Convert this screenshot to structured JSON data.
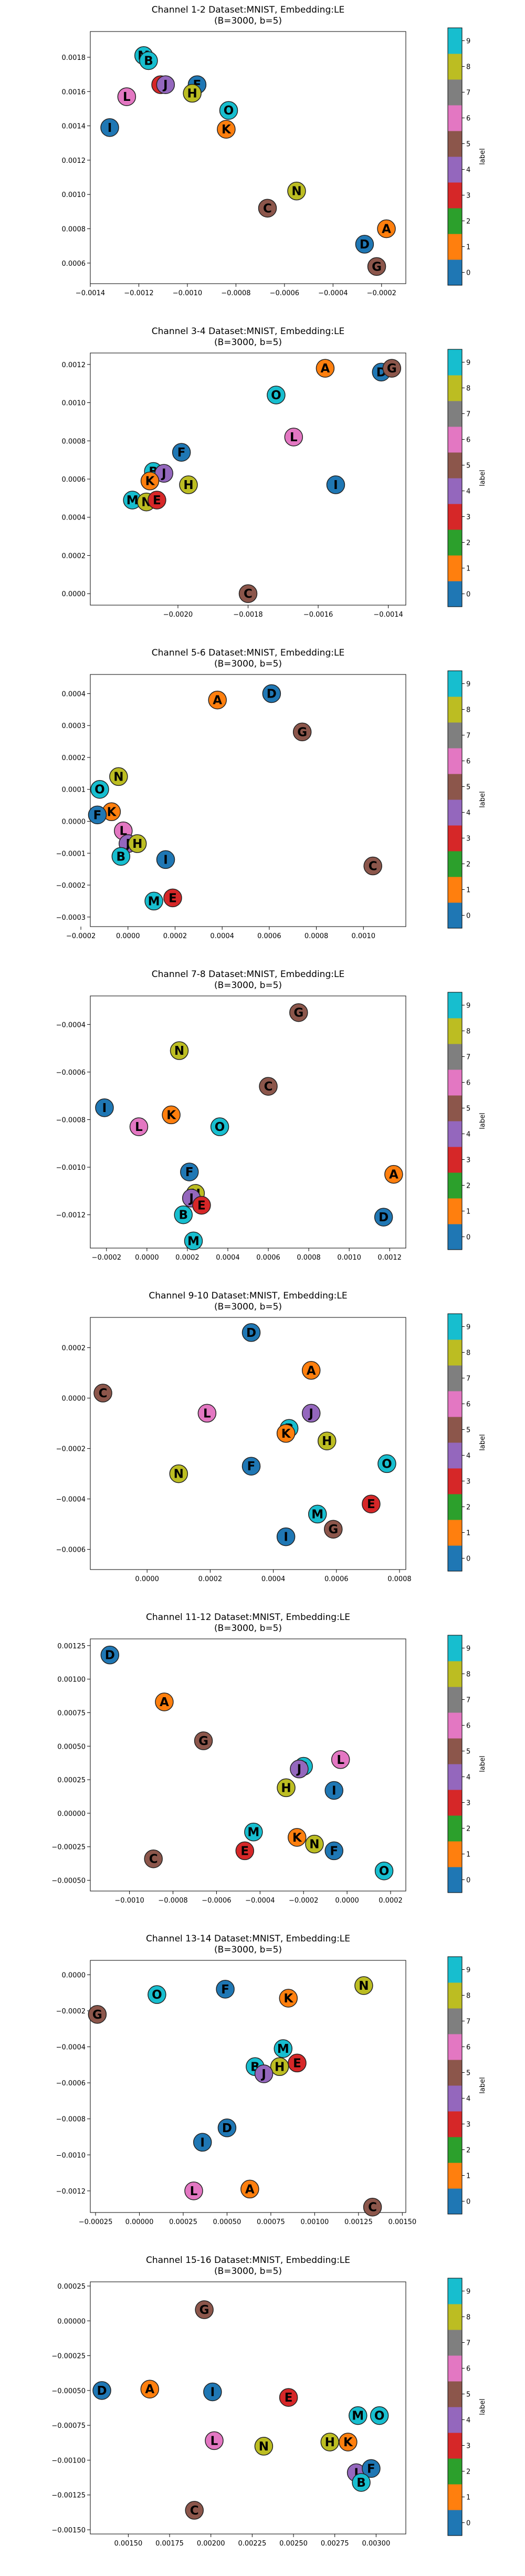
{
  "figure": {
    "colorbar": {
      "label": "label",
      "ticks": [
        "0",
        "1",
        "2",
        "3",
        "4",
        "5",
        "6",
        "7",
        "8",
        "9"
      ],
      "colors": [
        "#1f77b4",
        "#ff7f0e",
        "#2ca02c",
        "#d62728",
        "#9467bd",
        "#8c564b",
        "#e377c2",
        "#7f7f7f",
        "#bcbd22",
        "#17becf"
      ]
    },
    "letter_label": {
      "A": 1,
      "B": 9,
      "D": 0,
      "E": 3,
      "F": 0,
      "G": 5,
      "H": 8,
      "I": 0,
      "J": 4,
      "K": 1,
      "L": 6,
      "M": 9,
      "N": 8,
      "O": 9,
      "C": 5
    }
  },
  "chart_data": [
    {
      "type": "scatter",
      "title": "Channel 1-2 Dataset:MNIST, Embedding:LE",
      "subtitle": "(B=3000, b=5)",
      "xlim": [
        -0.0014,
        -0.0001
      ],
      "ylim": [
        0.00048,
        0.00195
      ],
      "xticks": [
        -0.0014,
        -0.0012,
        -0.001,
        -0.0008,
        -0.0006,
        -0.0004,
        -0.0002
      ],
      "xticklabels": [
        "−0.0014",
        "−0.0012",
        "−0.0010",
        "−0.0008",
        "−0.0006",
        "−0.0004",
        "−0.0002"
      ],
      "yticks": [
        0.0006,
        0.0008,
        0.001,
        0.0012,
        0.0014,
        0.0016,
        0.0018
      ],
      "yticklabels": [
        "0.0006",
        "0.0008",
        "0.0010",
        "0.0012",
        "0.0014",
        "0.0016",
        "0.0018"
      ],
      "points": [
        {
          "letter": "M",
          "x": -0.00118,
          "y": 0.00181
        },
        {
          "letter": "B",
          "x": -0.00116,
          "y": 0.00178
        },
        {
          "letter": "L",
          "x": -0.00125,
          "y": 0.00157
        },
        {
          "letter": "I",
          "x": -0.00132,
          "y": 0.00139
        },
        {
          "letter": "E",
          "x": -0.00111,
          "y": 0.00164
        },
        {
          "letter": "J",
          "x": -0.00109,
          "y": 0.00164
        },
        {
          "letter": "F",
          "x": -0.00096,
          "y": 0.00164
        },
        {
          "letter": "H",
          "x": -0.00098,
          "y": 0.00159
        },
        {
          "letter": "O",
          "x": -0.00083,
          "y": 0.00149
        },
        {
          "letter": "K",
          "x": -0.00084,
          "y": 0.00138
        },
        {
          "letter": "N",
          "x": -0.00055,
          "y": 0.00102
        },
        {
          "letter": "C",
          "x": -0.00067,
          "y": 0.00092
        },
        {
          "letter": "A",
          "x": -0.00018,
          "y": 0.0008
        },
        {
          "letter": "D",
          "x": -0.00027,
          "y": 0.00071
        },
        {
          "letter": "G",
          "x": -0.00022,
          "y": 0.00058
        }
      ]
    },
    {
      "type": "scatter",
      "title": "Channel 3-4 Dataset:MNIST, Embedding:LE",
      "subtitle": "(B=3000, b=5)",
      "xlim": [
        -0.00225,
        -0.00135
      ],
      "ylim": [
        -6e-05,
        0.00126
      ],
      "xticks": [
        -0.002,
        -0.0018,
        -0.0016,
        -0.0014
      ],
      "xticklabels": [
        "−0.0020",
        "−0.0018",
        "−0.0016",
        "−0.0014"
      ],
      "yticks": [
        0,
        0.0002,
        0.0004,
        0.0006,
        0.0008,
        0.001,
        0.0012
      ],
      "yticklabels": [
        "0.0000",
        "0.0002",
        "0.0004",
        "0.0006",
        "0.0008",
        "0.0010",
        "0.0012"
      ],
      "points": [
        {
          "letter": "A",
          "x": -0.00158,
          "y": 0.00118
        },
        {
          "letter": "D",
          "x": -0.00142,
          "y": 0.00116
        },
        {
          "letter": "G",
          "x": -0.00139,
          "y": 0.00118
        },
        {
          "letter": "O",
          "x": -0.00172,
          "y": 0.00104
        },
        {
          "letter": "L",
          "x": -0.00167,
          "y": 0.00082
        },
        {
          "letter": "F",
          "x": -0.00199,
          "y": 0.00074
        },
        {
          "letter": "B",
          "x": -0.00207,
          "y": 0.00064
        },
        {
          "letter": "J",
          "x": -0.00204,
          "y": 0.00063
        },
        {
          "letter": "K",
          "x": -0.00208,
          "y": 0.00059
        },
        {
          "letter": "H",
          "x": -0.00197,
          "y": 0.00057
        },
        {
          "letter": "I",
          "x": -0.00155,
          "y": 0.00057
        },
        {
          "letter": "M",
          "x": -0.00213,
          "y": 0.00049
        },
        {
          "letter": "N",
          "x": -0.00209,
          "y": 0.00048
        },
        {
          "letter": "E",
          "x": -0.00206,
          "y": 0.00049
        },
        {
          "letter": "C",
          "x": -0.0018,
          "y": 0.0
        }
      ]
    },
    {
      "type": "scatter",
      "title": "Channel 5-6 Dataset:MNIST, Embedding:LE",
      "subtitle": "(B=3000, b=5)",
      "xlim": [
        -0.00016,
        0.00118
      ],
      "ylim": [
        -0.00033,
        0.00046
      ],
      "xticks": [
        -0.0002,
        0,
        0.0002,
        0.0004,
        0.0006,
        0.0008,
        0.001
      ],
      "xticklabels": [
        "−0.0002",
        "0.0000",
        "0.0002",
        "0.0004",
        "0.0006",
        "0.0008",
        "0.0010"
      ],
      "yticks": [
        -0.0003,
        -0.0002,
        -0.0001,
        0,
        0.0001,
        0.0002,
        0.0003,
        0.0004
      ],
      "yticklabels": [
        "−0.0003",
        "−0.0002",
        "−0.0001",
        "0.0000",
        "0.0001",
        "0.0002",
        "0.0003",
        "0.0004"
      ],
      "points": [
        {
          "letter": "D",
          "x": 0.00061,
          "y": 0.0004
        },
        {
          "letter": "A",
          "x": 0.00038,
          "y": 0.00038
        },
        {
          "letter": "G",
          "x": 0.00074,
          "y": 0.00028
        },
        {
          "letter": "N",
          "x": -4e-05,
          "y": 0.00014
        },
        {
          "letter": "O",
          "x": -0.00012,
          "y": 0.0001
        },
        {
          "letter": "K",
          "x": -7e-05,
          "y": 3e-05
        },
        {
          "letter": "F",
          "x": -0.00013,
          "y": 2e-05
        },
        {
          "letter": "L",
          "x": -2e-05,
          "y": -3e-05
        },
        {
          "letter": "J",
          "x": 0.0,
          "y": -7e-05
        },
        {
          "letter": "H",
          "x": 4e-05,
          "y": -7e-05
        },
        {
          "letter": "B",
          "x": -3e-05,
          "y": -0.00011
        },
        {
          "letter": "I",
          "x": 0.00016,
          "y": -0.00012
        },
        {
          "letter": "M",
          "x": 0.00011,
          "y": -0.00025
        },
        {
          "letter": "E",
          "x": 0.00019,
          "y": -0.00024
        },
        {
          "letter": "C",
          "x": 0.00104,
          "y": -0.00014
        }
      ]
    },
    {
      "type": "scatter",
      "title": "Channel 7-8 Dataset:MNIST, Embedding:LE",
      "subtitle": "(B=3000, b=5)",
      "xlim": [
        -0.00028,
        0.00128
      ],
      "ylim": [
        -0.00134,
        -0.00028
      ],
      "xticks": [
        -0.0002,
        0,
        0.0002,
        0.0004,
        0.0006,
        0.0008,
        0.001,
        0.0012
      ],
      "xticklabels": [
        "−0.0002",
        "0.0000",
        "0.0002",
        "0.0004",
        "0.0006",
        "0.0008",
        "0.0010",
        "0.0012"
      ],
      "yticks": [
        -0.0012,
        -0.001,
        -0.0008,
        -0.0006,
        -0.0004
      ],
      "yticklabels": [
        "−0.0012",
        "−0.0010",
        "−0.0008",
        "−0.0006",
        "−0.0004"
      ],
      "points": [
        {
          "letter": "G",
          "x": 0.00075,
          "y": -0.00035
        },
        {
          "letter": "N",
          "x": 0.00016,
          "y": -0.00051
        },
        {
          "letter": "C",
          "x": 0.0006,
          "y": -0.00066
        },
        {
          "letter": "I",
          "x": -0.00021,
          "y": -0.00075
        },
        {
          "letter": "K",
          "x": 0.00012,
          "y": -0.00078
        },
        {
          "letter": "L",
          "x": -4e-05,
          "y": -0.00083
        },
        {
          "letter": "O",
          "x": 0.00036,
          "y": -0.00083
        },
        {
          "letter": "A",
          "x": 0.00122,
          "y": -0.00103
        },
        {
          "letter": "F",
          "x": 0.00021,
          "y": -0.00102
        },
        {
          "letter": "H",
          "x": 0.00024,
          "y": -0.00111
        },
        {
          "letter": "J",
          "x": 0.00022,
          "y": -0.00113
        },
        {
          "letter": "E",
          "x": 0.00027,
          "y": -0.00116
        },
        {
          "letter": "B",
          "x": 0.00018,
          "y": -0.0012
        },
        {
          "letter": "D",
          "x": 0.00117,
          "y": -0.00121
        },
        {
          "letter": "M",
          "x": 0.00023,
          "y": -0.00131
        }
      ]
    },
    {
      "type": "scatter",
      "title": "Channel 9-10 Dataset:MNIST, Embedding:LE",
      "subtitle": "(B=3000, b=5)",
      "xlim": [
        -0.00018,
        0.00082
      ],
      "ylim": [
        -0.00068,
        0.00032
      ],
      "xticks": [
        0,
        0.0002,
        0.0004,
        0.0006,
        0.0008
      ],
      "xticklabels": [
        "0.0000",
        "0.0002",
        "0.0004",
        "0.0006",
        "0.0008"
      ],
      "yticks": [
        -0.0006,
        -0.0004,
        -0.0002,
        0,
        0.0002
      ],
      "yticklabels": [
        "−0.0006",
        "−0.0004",
        "−0.0002",
        "0.0000",
        "0.0002"
      ],
      "points": [
        {
          "letter": "D",
          "x": 0.00033,
          "y": 0.00026
        },
        {
          "letter": "A",
          "x": 0.00052,
          "y": 0.00011
        },
        {
          "letter": "C",
          "x": -0.00014,
          "y": 2e-05
        },
        {
          "letter": "L",
          "x": 0.00019,
          "y": -6e-05
        },
        {
          "letter": "J",
          "x": 0.00052,
          "y": -6e-05
        },
        {
          "letter": "B",
          "x": 0.00045,
          "y": -0.00012
        },
        {
          "letter": "K",
          "x": 0.00044,
          "y": -0.00014
        },
        {
          "letter": "H",
          "x": 0.00057,
          "y": -0.00017
        },
        {
          "letter": "N",
          "x": 0.0001,
          "y": -0.0003
        },
        {
          "letter": "F",
          "x": 0.00033,
          "y": -0.00027
        },
        {
          "letter": "O",
          "x": 0.00076,
          "y": -0.00026
        },
        {
          "letter": "E",
          "x": 0.00071,
          "y": -0.00042
        },
        {
          "letter": "M",
          "x": 0.00054,
          "y": -0.00046
        },
        {
          "letter": "G",
          "x": 0.00059,
          "y": -0.00052
        },
        {
          "letter": "I",
          "x": 0.00044,
          "y": -0.00055
        }
      ]
    },
    {
      "type": "scatter",
      "title": "Channel 11-12 Dataset:MNIST, Embedding:LE",
      "subtitle": "(B=3000, b=5)",
      "xlim": [
        -0.00118,
        0.00027
      ],
      "ylim": [
        -0.00058,
        0.0013
      ],
      "xticks": [
        -0.001,
        -0.0008,
        -0.0006,
        -0.0004,
        -0.0002,
        0,
        0.0002
      ],
      "xticklabels": [
        "−0.0010",
        "−0.0008",
        "−0.0006",
        "−0.0004",
        "−0.0002",
        "0.0000",
        "0.0002"
      ],
      "yticks": [
        -0.0005,
        -0.00025,
        0,
        0.00025,
        0.0005,
        0.00075,
        0.001,
        0.00125
      ],
      "yticklabels": [
        "−0.00050",
        "−0.00025",
        "0.00000",
        "0.00025",
        "0.00050",
        "0.00075",
        "0.00100",
        "0.00125"
      ],
      "points": [
        {
          "letter": "D",
          "x": -0.00109,
          "y": 0.00118
        },
        {
          "letter": "A",
          "x": -0.00084,
          "y": 0.00083
        },
        {
          "letter": "G",
          "x": -0.00066,
          "y": 0.00054
        },
        {
          "letter": "L",
          "x": -3e-05,
          "y": 0.0004
        },
        {
          "letter": "B",
          "x": -0.0002,
          "y": 0.00035
        },
        {
          "letter": "J",
          "x": -0.00022,
          "y": 0.00033
        },
        {
          "letter": "H",
          "x": -0.00028,
          "y": 0.00019
        },
        {
          "letter": "I",
          "x": -6e-05,
          "y": 0.00017
        },
        {
          "letter": "M",
          "x": -0.00043,
          "y": -0.00014
        },
        {
          "letter": "K",
          "x": -0.00023,
          "y": -0.00018
        },
        {
          "letter": "N",
          "x": -0.00015,
          "y": -0.00023
        },
        {
          "letter": "E",
          "x": -0.00047,
          "y": -0.00028
        },
        {
          "letter": "F",
          "x": -6e-05,
          "y": -0.00028
        },
        {
          "letter": "C",
          "x": -0.00089,
          "y": -0.00034
        },
        {
          "letter": "O",
          "x": 0.00017,
          "y": -0.00043
        }
      ]
    },
    {
      "type": "scatter",
      "title": "Channel 13-14 Dataset:MNIST, Embedding:LE",
      "subtitle": "(B=3000, b=5)",
      "xlim": [
        -0.00028,
        0.00152
      ],
      "ylim": [
        -0.00132,
        8e-05
      ],
      "xticks": [
        -0.00025,
        0,
        0.00025,
        0.0005,
        0.00075,
        0.001,
        0.00125,
        0.0015
      ],
      "xticklabels": [
        "−0.00025",
        "0.00000",
        "0.00025",
        "0.00050",
        "0.00075",
        "0.00100",
        "0.00125",
        "0.00150"
      ],
      "yticks": [
        -0.0012,
        -0.001,
        -0.0008,
        -0.0006,
        -0.0004,
        -0.0002,
        0
      ],
      "yticklabels": [
        "−0.0012",
        "−0.0010",
        "−0.0008",
        "−0.0006",
        "−0.0004",
        "−0.0002",
        "0.0000"
      ],
      "points": [
        {
          "letter": "N",
          "x": 0.00128,
          "y": -6e-05
        },
        {
          "letter": "O",
          "x": 0.0001,
          "y": -0.00011
        },
        {
          "letter": "F",
          "x": 0.00049,
          "y": -8e-05
        },
        {
          "letter": "K",
          "x": 0.00085,
          "y": -0.00013
        },
        {
          "letter": "G",
          "x": -0.00024,
          "y": -0.00022
        },
        {
          "letter": "M",
          "x": 0.00082,
          "y": -0.00041
        },
        {
          "letter": "E",
          "x": 0.0009,
          "y": -0.00049
        },
        {
          "letter": "H",
          "x": 0.0008,
          "y": -0.00051
        },
        {
          "letter": "B",
          "x": 0.00066,
          "y": -0.00051
        },
        {
          "letter": "J",
          "x": 0.00071,
          "y": -0.00055
        },
        {
          "letter": "D",
          "x": 0.0005,
          "y": -0.00085
        },
        {
          "letter": "I",
          "x": 0.00036,
          "y": -0.00093
        },
        {
          "letter": "L",
          "x": 0.00031,
          "y": -0.0012
        },
        {
          "letter": "A",
          "x": 0.00063,
          "y": -0.00119
        },
        {
          "letter": "C",
          "x": 0.00133,
          "y": -0.00129
        }
      ]
    },
    {
      "type": "scatter",
      "title": "Channel 15-16 Dataset:MNIST, Embedding:LE",
      "subtitle": "(B=3000, b=5)",
      "xlim": [
        0.00127,
        0.00318
      ],
      "ylim": [
        -0.00153,
        0.00028
      ],
      "xticks": [
        0.0015,
        0.00175,
        0.002,
        0.00225,
        0.0025,
        0.00275,
        0.003
      ],
      "xticklabels": [
        "0.00150",
        "0.00175",
        "0.00200",
        "0.00225",
        "0.00250",
        "0.00275",
        "0.00300"
      ],
      "yticks": [
        -0.0015,
        -0.00125,
        -0.001,
        -0.00075,
        -0.0005,
        -0.00025,
        0,
        0.00025
      ],
      "yticklabels": [
        "−0.00150",
        "−0.00125",
        "−0.00100",
        "−0.00075",
        "−0.00050",
        "−0.00025",
        "0.00000",
        "0.00025"
      ],
      "points": [
        {
          "letter": "G",
          "x": 0.00196,
          "y": 8e-05
        },
        {
          "letter": "D",
          "x": 0.00134,
          "y": -0.0005
        },
        {
          "letter": "A",
          "x": 0.00163,
          "y": -0.00049
        },
        {
          "letter": "I",
          "x": 0.00201,
          "y": -0.00051
        },
        {
          "letter": "E",
          "x": 0.00247,
          "y": -0.00055
        },
        {
          "letter": "M",
          "x": 0.00289,
          "y": -0.00068
        },
        {
          "letter": "O",
          "x": 0.00302,
          "y": -0.00068
        },
        {
          "letter": "L",
          "x": 0.00202,
          "y": -0.00086
        },
        {
          "letter": "N",
          "x": 0.00232,
          "y": -0.0009
        },
        {
          "letter": "H",
          "x": 0.00272,
          "y": -0.00087
        },
        {
          "letter": "K",
          "x": 0.00283,
          "y": -0.00087
        },
        {
          "letter": "J",
          "x": 0.00288,
          "y": -0.00109
        },
        {
          "letter": "F",
          "x": 0.00297,
          "y": -0.00106
        },
        {
          "letter": "B",
          "x": 0.00291,
          "y": -0.00116
        },
        {
          "letter": "C",
          "x": 0.0019,
          "y": -0.00136
        }
      ]
    }
  ]
}
